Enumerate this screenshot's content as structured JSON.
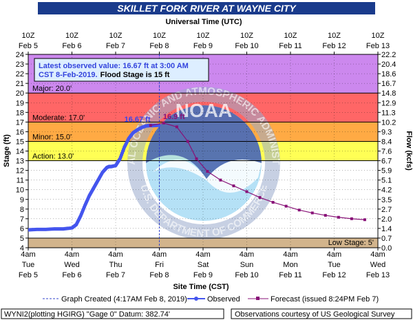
{
  "chart_data": {
    "type": "line",
    "title": "SKILLET FORK RIVER AT WAYNE CITY",
    "top_axis_title": "Universal Time (UTC)",
    "bottom_axis_title": "Site Time (CST)",
    "ylabel_left": "Stage (ft)",
    "ylabel_right": "Flow (kcfs)",
    "ylim": [
      4,
      24
    ],
    "y_ticks": [
      4,
      5,
      6,
      7,
      8,
      9,
      10,
      11,
      12,
      13,
      14,
      15,
      16,
      17,
      18,
      19,
      20,
      21,
      22,
      23,
      24
    ],
    "right_ticks": [
      {
        "stage": 24,
        "label": "22.2"
      },
      {
        "stage": 23,
        "label": "20.4"
      },
      {
        "stage": 22,
        "label": "18.6"
      },
      {
        "stage": 21,
        "label": "16.7"
      },
      {
        "stage": 20,
        "label": "14.8"
      },
      {
        "stage": 19,
        "label": "12.9"
      },
      {
        "stage": 18,
        "label": "11.3"
      },
      {
        "stage": 17,
        "label": "10.2"
      },
      {
        "stage": 16,
        "label": "9.3"
      },
      {
        "stage": 15,
        "label": "8.4"
      },
      {
        "stage": 14,
        "label": "7.6"
      },
      {
        "stage": 13,
        "label": "6.7"
      },
      {
        "stage": 12,
        "label": "5.9"
      },
      {
        "stage": 11,
        "label": "5.1"
      },
      {
        "stage": 10,
        "label": "4.2"
      },
      {
        "stage": 9,
        "label": "3.5"
      },
      {
        "stage": 8,
        "label": "2.7"
      },
      {
        "stage": 7,
        "label": "2.0"
      },
      {
        "stage": 6,
        "label": "1.4"
      },
      {
        "stage": 5,
        "label": "0.7"
      },
      {
        "stage": 4,
        "label": "0.0"
      }
    ],
    "top_ticks": [
      {
        "day": 0,
        "line1": "10Z",
        "line2": "Feb  5"
      },
      {
        "day": 1,
        "line1": "10Z",
        "line2": "Feb  6"
      },
      {
        "day": 2,
        "line1": "10Z",
        "line2": "Feb  7"
      },
      {
        "day": 3,
        "line1": "10Z",
        "line2": "Feb  8"
      },
      {
        "day": 4,
        "line1": "10Z",
        "line2": "Feb  9"
      },
      {
        "day": 5,
        "line1": "10Z",
        "line2": "Feb 10"
      },
      {
        "day": 6,
        "line1": "10Z",
        "line2": "Feb 11"
      },
      {
        "day": 7,
        "line1": "10Z",
        "line2": "Feb 12"
      },
      {
        "day": 8,
        "line1": "10Z",
        "line2": "Feb 13"
      }
    ],
    "bottom_ticks": [
      {
        "day": 0,
        "line1": "4am",
        "line2": "Tue",
        "line3": "Feb 5"
      },
      {
        "day": 1,
        "line1": "4am",
        "line2": "Wed",
        "line3": "Feb 6"
      },
      {
        "day": 2,
        "line1": "4am",
        "line2": "Thu",
        "line3": "Feb 7"
      },
      {
        "day": 3,
        "line1": "4am",
        "line2": "Fri",
        "line3": "Feb 8"
      },
      {
        "day": 4,
        "line1": "4am",
        "line2": "Sat",
        "line3": "Feb 9"
      },
      {
        "day": 5,
        "line1": "4am",
        "line2": "Sun",
        "line3": "Feb 10"
      },
      {
        "day": 6,
        "line1": "4am",
        "line2": "Mon",
        "line3": "Feb 11"
      },
      {
        "day": 7,
        "line1": "4am",
        "line2": "Tue",
        "line3": "Feb 12"
      },
      {
        "day": 8,
        "line1": "4am",
        "line2": "Wed",
        "line3": "Feb 13"
      }
    ],
    "bands": [
      {
        "name": "Major",
        "label": "Major: 20.0'",
        "from": 20,
        "to": 24,
        "color": "#cc88ee"
      },
      {
        "name": "Moderate",
        "label": "Moderate: 17.0'",
        "from": 17,
        "to": 20,
        "color": "#ff6666"
      },
      {
        "name": "Minor",
        "label": "Minor: 15.0'",
        "from": 15,
        "to": 17,
        "color": "#ffaa44"
      },
      {
        "name": "Action",
        "label": "Action: 13.0'",
        "from": 13,
        "to": 15,
        "color": "#ffff55"
      },
      {
        "name": "Normal",
        "label": "",
        "from": 5,
        "to": 13,
        "color": "#ffffff"
      },
      {
        "name": "Low",
        "label": "Low Stage:  5'",
        "from": 4,
        "to": 5,
        "color": "#d2b48c"
      }
    ],
    "observed": {
      "name": "Observed",
      "color": "#4455ee",
      "x": [
        0,
        0.2,
        0.4,
        0.6,
        0.8,
        1.0,
        1.1,
        1.2,
        1.3,
        1.4,
        1.5,
        1.6,
        1.7,
        1.8,
        1.85,
        1.9,
        2.0,
        2.1,
        2.2,
        2.3,
        2.4,
        2.5,
        2.6,
        2.7,
        2.8,
        2.9,
        3.0
      ],
      "y": [
        5.85,
        5.9,
        5.9,
        5.95,
        5.95,
        6.05,
        6.4,
        7.3,
        8.4,
        9.4,
        10.2,
        11.0,
        11.8,
        12.3,
        12.4,
        12.4,
        12.5,
        13.2,
        14.4,
        15.3,
        15.9,
        16.2,
        16.45,
        16.6,
        16.65,
        16.65,
        16.67
      ]
    },
    "forecast": {
      "name": "Forecast (issued 8:24PM Feb 7)",
      "color": "#881177",
      "x": [
        2.8,
        3.1,
        3.4,
        3.65,
        3.85,
        4.1,
        4.4,
        4.7,
        5.0,
        5.3,
        5.6,
        5.9,
        6.2,
        6.5,
        6.8,
        7.1,
        7.4,
        7.7
      ],
      "y": [
        16.65,
        16.9,
        16.5,
        15.0,
        13.2,
        11.9,
        11.0,
        10.4,
        9.8,
        9.2,
        8.7,
        8.3,
        7.9,
        7.6,
        7.35,
        7.15,
        7.0,
        6.9
      ]
    },
    "graph_created_day": 3,
    "annotations": {
      "observed_value": "16.67 ft",
      "forecast_peak": "16.9 ft"
    },
    "info_box": {
      "line1": "Latest observed value: 16.67 ft at 3:00 AM",
      "line2_part1": "CST 8-Feb-2019.",
      "line2_part2": "Flood Stage is 15 ft"
    },
    "legend": {
      "graph_created": "Graph Created (4:17AM Feb 8, 2019)",
      "observed": "Observed",
      "forecast": "Forecast (issued 8:24PM Feb 7)"
    },
    "footer": {
      "left": "WYNI2(plotting HGIRG) \"Gage 0\" Datum:  382.74'",
      "right": "Observations courtesy of US Geological Survey"
    },
    "watermark": {
      "ring_text": "NATIONAL OCEANIC AND ATMOSPHERIC ADMINISTRATION",
      "bottom_text": "U.S. DEPARTMENT OF COMMERCE",
      "center_text": "NOAA"
    },
    "grid": true
  }
}
